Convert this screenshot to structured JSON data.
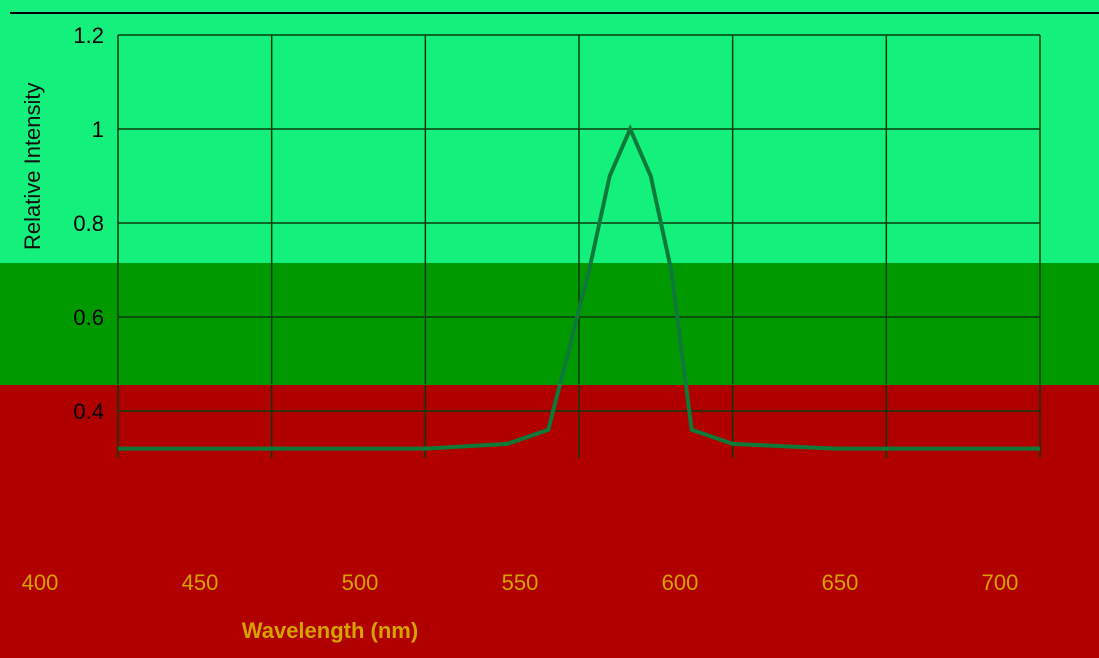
{
  "chart_data": {
    "type": "line",
    "title": "",
    "xlabel": "Wavelength (nm)",
    "ylabel": "Relative Intensity",
    "ylim": [
      0.3,
      1.2
    ],
    "yticks": [
      "0.4",
      "0.6",
      "0.8",
      "1",
      "1.2"
    ],
    "xtick_labels": [
      "400",
      "450",
      "500",
      "550",
      "600",
      "650",
      "700"
    ],
    "grid": true,
    "series": [
      {
        "x": [
          0,
          100,
          200,
          300,
          380,
          420,
          460,
          480,
          500,
          520,
          540,
          560,
          600,
          700,
          800,
          900
        ],
        "y": [
          0.32,
          0.32,
          0.32,
          0.32,
          0.33,
          0.36,
          0.7,
          0.9,
          1.0,
          0.9,
          0.7,
          0.36,
          0.33,
          0.32,
          0.32,
          0.32
        ]
      }
    ]
  },
  "colors": {
    "band_top": "#14f07c",
    "band_mid": "#009a00",
    "band_bot": "#b00000",
    "line": "#0e7a3a",
    "grid": "#0a3a0a"
  }
}
